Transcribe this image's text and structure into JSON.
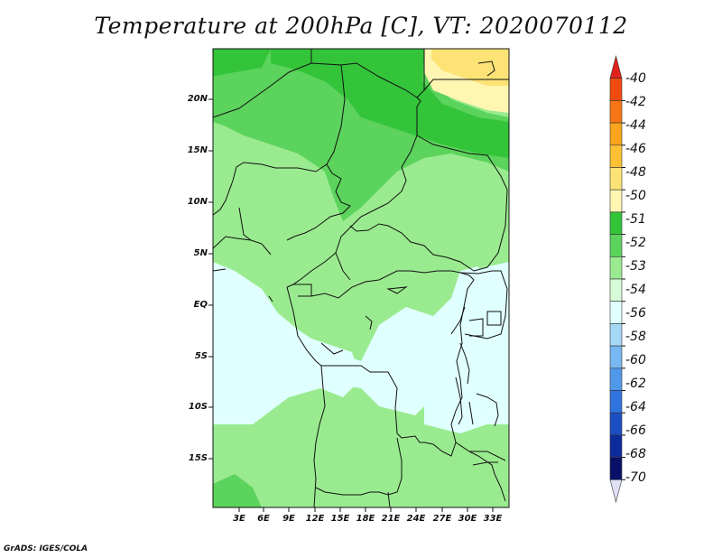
{
  "title": "Temperature at 200hPa [C], VT: 2020070112",
  "credit": "GrADS: IGES/COLA",
  "map": {
    "lat_labels": [
      "20N",
      "15N",
      "10N",
      "5N",
      "EQ",
      "5S",
      "10S",
      "15S"
    ],
    "lon_labels": [
      "3E",
      "6E",
      "9E",
      "12E",
      "15E",
      "18E",
      "21E",
      "24E",
      "27E",
      "30E",
      "33E"
    ]
  },
  "colorbar": {
    "levels": [
      "-40",
      "-42",
      "-44",
      "-46",
      "-48",
      "-50",
      "-51",
      "-52",
      "-53",
      "-54",
      "-56",
      "-58",
      "-60",
      "-62",
      "-64",
      "-66",
      "-68",
      "-70"
    ],
    "colors": [
      "#e0211c",
      "#f04a0f",
      "#f67514",
      "#f9a41c",
      "#fbc034",
      "#fde375",
      "#fff6b2",
      "#33c43a",
      "#5cd35c",
      "#9aeb8f",
      "#d7fbd6",
      "#e0ffff",
      "#a5d8f5",
      "#78b8f2",
      "#5098ea",
      "#2f73de",
      "#1b4ec1",
      "#0d2c9c",
      "#080f66",
      "#e0e0f5"
    ]
  },
  "field_colors": {
    "c_m50": "#fde375",
    "c_m51": "#fff6b2",
    "c_m52": "#33c43a",
    "c_m53": "#5cd35c",
    "c_m54": "#9aeb8f",
    "c_m56": "#c5f5bb",
    "c_bg": "#e0ffff"
  }
}
